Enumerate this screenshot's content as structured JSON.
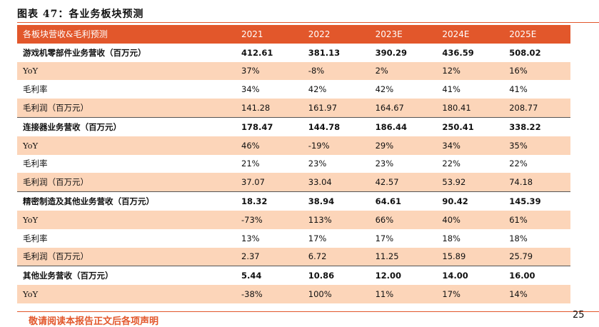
{
  "title": "图表 47：各业务板块预测",
  "header": {
    "label": "各板块营收&毛利预测",
    "years": [
      "2021",
      "2022",
      "2023E",
      "2024E",
      "2025E"
    ]
  },
  "rows": [
    {
      "label": "游戏机零部件业务营收（百万元）",
      "values": [
        "412.61",
        "381.13",
        "390.29",
        "436.59",
        "508.02"
      ],
      "kind": "section"
    },
    {
      "label": "YoY",
      "values": [
        "37%",
        "-8%",
        "2%",
        "12%",
        "16%"
      ],
      "kind": "shade"
    },
    {
      "label": "毛利率",
      "values": [
        "34%",
        "42%",
        "42%",
        "41%",
        "41%"
      ],
      "kind": "plain"
    },
    {
      "label": "毛利润（百万元）",
      "values": [
        "141.28",
        "161.97",
        "164.67",
        "180.41",
        "208.77"
      ],
      "kind": "shade"
    },
    {
      "label": "连接器业务营收（百万元）",
      "values": [
        "178.47",
        "144.78",
        "186.44",
        "250.41",
        "338.22"
      ],
      "kind": "section"
    },
    {
      "label": "YoY",
      "values": [
        "46%",
        "-19%",
        "29%",
        "34%",
        "35%"
      ],
      "kind": "shade"
    },
    {
      "label": "毛利率",
      "values": [
        "21%",
        "23%",
        "23%",
        "22%",
        "22%"
      ],
      "kind": "plain"
    },
    {
      "label": "毛利润（百万元）",
      "values": [
        "37.07",
        "33.04",
        "42.57",
        "53.92",
        "74.18"
      ],
      "kind": "shade"
    },
    {
      "label": "精密制造及其他业务营收（百万元）",
      "values": [
        "18.32",
        "38.94",
        "64.61",
        "90.42",
        "145.39"
      ],
      "kind": "section"
    },
    {
      "label": "YoY",
      "values": [
        "-73%",
        "113%",
        "66%",
        "40%",
        "61%"
      ],
      "kind": "shade"
    },
    {
      "label": "毛利率",
      "values": [
        "13%",
        "17%",
        "17%",
        "18%",
        "18%"
      ],
      "kind": "plain"
    },
    {
      "label": "毛利润（百万元）",
      "values": [
        "2.37",
        "6.72",
        "11.25",
        "15.89",
        "25.79"
      ],
      "kind": "shade"
    },
    {
      "label": "其他业务营收（百万元）",
      "values": [
        "5.44",
        "10.86",
        "12.00",
        "14.00",
        "16.00"
      ],
      "kind": "section"
    },
    {
      "label": "YoY",
      "values": [
        "-38%",
        "100%",
        "11%",
        "17%",
        "14%"
      ],
      "kind": "shade"
    }
  ],
  "footer": {
    "disclaimer": "敬请阅读本报告正文后各项声明",
    "page_number": "25"
  },
  "colors": {
    "accent": "#e2572b",
    "shade": "#fcd5b9"
  }
}
